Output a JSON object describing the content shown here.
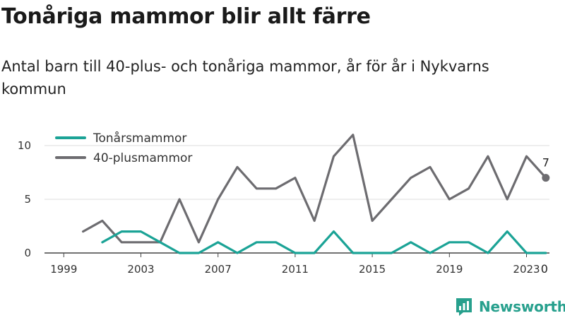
{
  "header": {
    "title": "Tonåriga mammor blir allt färre",
    "subtitle": "Antal barn till 40-plus- och tonåriga mammor, år för år i Nykvarns kommun"
  },
  "brand": {
    "name": "Newsworthy",
    "icon": "newsworthy-logo-icon",
    "color": "#27a08d"
  },
  "chart_data": {
    "type": "line",
    "title": "",
    "xlabel": "",
    "ylabel": "",
    "xlim": [
      1999,
      2024
    ],
    "ylim": [
      0,
      11
    ],
    "grid": true,
    "legend_position": "top-left",
    "x_ticks": [
      "1999",
      "2003",
      "2007",
      "2011",
      "2015",
      "2019",
      "2023"
    ],
    "y_ticks": [
      "0",
      "5",
      "10"
    ],
    "series": [
      {
        "name": "Tonårsmammor",
        "color": "#1ba396",
        "x": [
          2001,
          2002,
          2003,
          2004,
          2005,
          2006,
          2007,
          2008,
          2009,
          2010,
          2011,
          2012,
          2013,
          2014,
          2015,
          2016,
          2017,
          2018,
          2019,
          2020,
          2021,
          2022,
          2023,
          2024
        ],
        "values": [
          1,
          2,
          2,
          1,
          0,
          0,
          1,
          0,
          1,
          1,
          0,
          0,
          2,
          0,
          0,
          0,
          1,
          0,
          1,
          1,
          0,
          2,
          0,
          0
        ],
        "end_label": "0"
      },
      {
        "name": "40-plusmammor",
        "color": "#6d6c70",
        "x": [
          2000,
          2001,
          2002,
          2003,
          2004,
          2005,
          2006,
          2007,
          2008,
          2009,
          2010,
          2011,
          2012,
          2013,
          2014,
          2015,
          2016,
          2017,
          2018,
          2019,
          2020,
          2021,
          2022,
          2023,
          2024
        ],
        "values": [
          2,
          3,
          1,
          1,
          1,
          5,
          1,
          5,
          8,
          6,
          6,
          7,
          3,
          9,
          11,
          3,
          5,
          7,
          8,
          5,
          6,
          9,
          5,
          9,
          7
        ],
        "end_label": "7"
      }
    ]
  }
}
